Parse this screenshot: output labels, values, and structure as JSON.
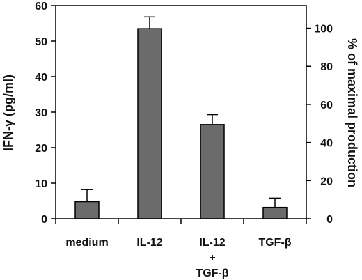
{
  "chart_data": {
    "type": "bar",
    "categories": [
      {
        "lines": [
          "medium"
        ]
      },
      {
        "lines": [
          "IL-12"
        ]
      },
      {
        "lines": [
          "IL-12",
          "+",
          "TGF-β"
        ]
      },
      {
        "lines": [
          "TGF-β"
        ]
      }
    ],
    "values": [
      4.8,
      53.5,
      26.5,
      3.2
    ],
    "errors": [
      3.4,
      3.3,
      2.8,
      2.6
    ],
    "ylabel": "IFN-γ (pg/ml)",
    "ylim": [
      0,
      60
    ],
    "yticks": [
      0,
      10,
      20,
      30,
      40,
      50,
      60
    ],
    "y2label": "% of maximal production",
    "y2lim": [
      0,
      111.9
    ],
    "y2ticks": [
      0,
      20,
      40,
      60,
      80,
      100
    ],
    "grid": false,
    "colors": {
      "bar": "#6b6b6b",
      "stroke": "#000000"
    }
  }
}
